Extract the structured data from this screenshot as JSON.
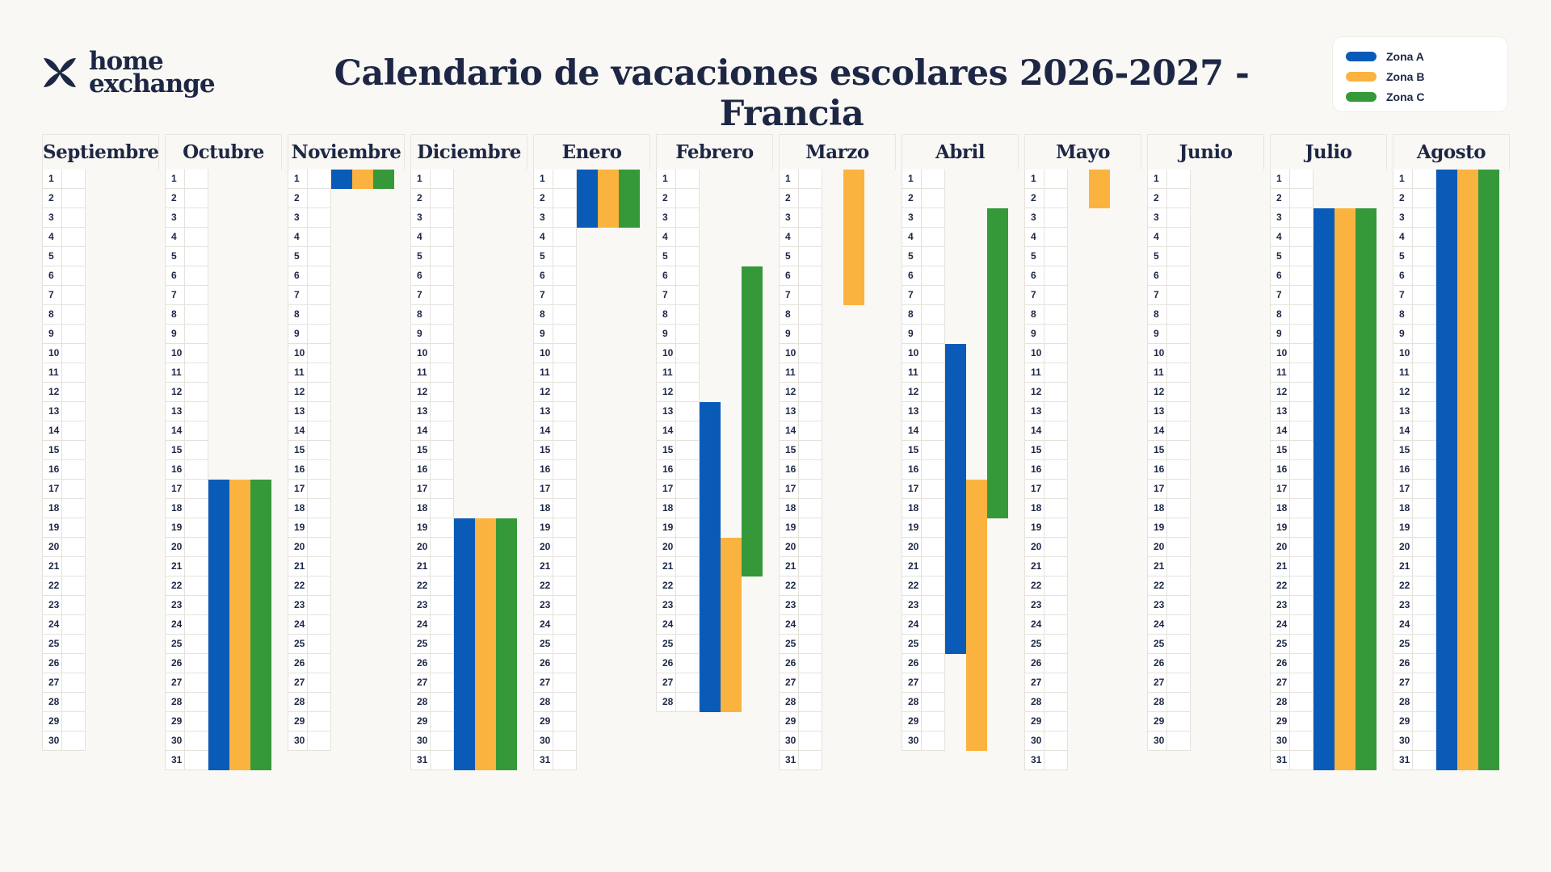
{
  "brand": {
    "line1": "home",
    "line2": "exchange",
    "logo_icon": "home-exchange-logo-icon"
  },
  "title": "Calendario de vacaciones escolares 2026-2027 - Francia",
  "legend": [
    {
      "label": "Zona A",
      "color": "#0a5bb8"
    },
    {
      "label": "Zona B",
      "color": "#fbb33f"
    },
    {
      "label": "Zona C",
      "color": "#35993a"
    }
  ],
  "months": [
    {
      "name": "Septiembre",
      "days": 30
    },
    {
      "name": "Octubre",
      "days": 31
    },
    {
      "name": "Noviembre",
      "days": 30
    },
    {
      "name": "Diciembre",
      "days": 31
    },
    {
      "name": "Enero",
      "days": 31
    },
    {
      "name": "Febrero",
      "days": 28
    },
    {
      "name": "Marzo",
      "days": 31
    },
    {
      "name": "Abril",
      "days": 30
    },
    {
      "name": "Mayo",
      "days": 31
    },
    {
      "name": "Junio",
      "days": 30
    },
    {
      "name": "Julio",
      "days": 31
    },
    {
      "name": "Agosto",
      "days": 31
    }
  ],
  "chart_data": {
    "type": "table",
    "zones": [
      "Zona A",
      "Zona B",
      "Zona C"
    ],
    "periods": [
      {
        "month": "Octubre",
        "zone": "Zona A",
        "start": 17,
        "end": 31
      },
      {
        "month": "Octubre",
        "zone": "Zona B",
        "start": 17,
        "end": 31
      },
      {
        "month": "Octubre",
        "zone": "Zona C",
        "start": 17,
        "end": 31
      },
      {
        "month": "Noviembre",
        "zone": "Zona A",
        "start": 1,
        "end": 1
      },
      {
        "month": "Noviembre",
        "zone": "Zona B",
        "start": 1,
        "end": 1
      },
      {
        "month": "Noviembre",
        "zone": "Zona C",
        "start": 1,
        "end": 1
      },
      {
        "month": "Diciembre",
        "zone": "Zona A",
        "start": 19,
        "end": 31
      },
      {
        "month": "Diciembre",
        "zone": "Zona B",
        "start": 19,
        "end": 31
      },
      {
        "month": "Diciembre",
        "zone": "Zona C",
        "start": 19,
        "end": 31
      },
      {
        "month": "Enero",
        "zone": "Zona A",
        "start": 1,
        "end": 3
      },
      {
        "month": "Enero",
        "zone": "Zona B",
        "start": 1,
        "end": 3
      },
      {
        "month": "Enero",
        "zone": "Zona C",
        "start": 1,
        "end": 3
      },
      {
        "month": "Febrero",
        "zone": "Zona A",
        "start": 13,
        "end": 28
      },
      {
        "month": "Febrero",
        "zone": "Zona B",
        "start": 20,
        "end": 28
      },
      {
        "month": "Febrero",
        "zone": "Zona C",
        "start": 6,
        "end": 21
      },
      {
        "month": "Marzo",
        "zone": "Zona B",
        "start": 1,
        "end": 7
      },
      {
        "month": "Abril",
        "zone": "Zona A",
        "start": 10,
        "end": 25
      },
      {
        "month": "Abril",
        "zone": "Zona B",
        "start": 17,
        "end": 30
      },
      {
        "month": "Abril",
        "zone": "Zona C",
        "start": 3,
        "end": 18
      },
      {
        "month": "Mayo",
        "zone": "Zona B",
        "start": 1,
        "end": 2
      },
      {
        "month": "Julio",
        "zone": "Zona A",
        "start": 3,
        "end": 31
      },
      {
        "month": "Julio",
        "zone": "Zona B",
        "start": 3,
        "end": 31
      },
      {
        "month": "Julio",
        "zone": "Zona C",
        "start": 3,
        "end": 31
      },
      {
        "month": "Agosto",
        "zone": "Zona A",
        "start": 1,
        "end": 31
      },
      {
        "month": "Agosto",
        "zone": "Zona B",
        "start": 1,
        "end": 31
      },
      {
        "month": "Agosto",
        "zone": "Zona C",
        "start": 1,
        "end": 31
      }
    ]
  }
}
